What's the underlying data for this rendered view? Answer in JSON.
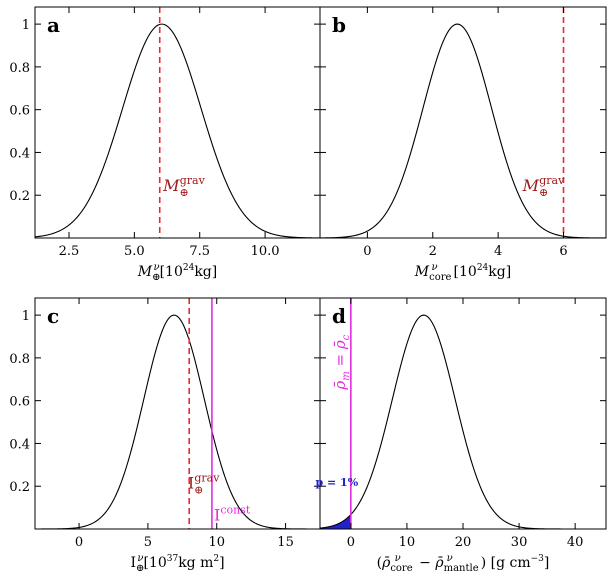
{
  "chart_data": [
    {
      "panel": "a",
      "type": "line",
      "xlabel": "M⊕ν [10²⁴kg]",
      "xlim": [
        1.2,
        12.1
      ],
      "ylim": [
        0,
        1.08
      ],
      "xticks": [
        2.5,
        5.0,
        7.5,
        10.0
      ],
      "xtick_labels": [
        "2.5",
        "5.0",
        "7.5",
        "10.0"
      ],
      "yticks": [
        0.2,
        0.4,
        0.6,
        0.8,
        1.0
      ],
      "ytick_labels": [
        "0.2",
        "0.4",
        "0.6",
        "0.8",
        "1"
      ],
      "curve": {
        "type": "gaussian",
        "center": 6.05,
        "sigma": 1.5
      },
      "vlines": [
        {
          "x": 5.97,
          "style": "dashed",
          "color": "#e8292e"
        }
      ],
      "annotations": [
        {
          "text": "M⊕grav",
          "x": 6.1,
          "y": 0.22,
          "color": "#a0191c"
        }
      ]
    },
    {
      "panel": "b",
      "type": "line",
      "xlabel": "Mᶜᵒʳᵉν [10²⁴kg]",
      "xlim": [
        -1.45,
        7.3
      ],
      "ylim": [
        0,
        1.08
      ],
      "xticks": [
        0,
        2,
        4,
        6
      ],
      "xtick_labels": [
        "0",
        "2",
        "4",
        "6"
      ],
      "curve": {
        "type": "gaussian",
        "center": 2.75,
        "sigma": 1.05
      },
      "vlines": [
        {
          "x": 6.0,
          "style": "dashed",
          "color": "#e8292e"
        }
      ],
      "annotations": [
        {
          "text": "M⊕grav",
          "x": 4.75,
          "y": 0.22,
          "color": "#a0191c"
        }
      ]
    },
    {
      "panel": "c",
      "type": "line",
      "xlabel": "I⊕ν [10³⁷kg m²]",
      "xlim": [
        -3.2,
        17.5
      ],
      "ylim": [
        0,
        1.08
      ],
      "xticks": [
        0,
        5,
        10,
        15
      ],
      "xtick_labels": [
        "0",
        "5",
        "10",
        "15"
      ],
      "yticks": [
        0.2,
        0.4,
        0.6,
        0.8,
        1.0
      ],
      "ytick_labels": [
        "0.2",
        "0.4",
        "0.6",
        "0.8",
        "1"
      ],
      "curve": {
        "type": "gaussian",
        "center": 6.9,
        "sigma": 2.2
      },
      "vlines": [
        {
          "x": 8.0,
          "style": "dashed",
          "color": "#e8292e"
        },
        {
          "x": 9.65,
          "style": "solid",
          "color": "#e22ce0"
        }
      ],
      "annotations": [
        {
          "text": "I⊕grav",
          "x": 7.9,
          "y": 0.19,
          "color": "#a0191c"
        },
        {
          "text": "Iconst",
          "x": 9.8,
          "y": 0.04,
          "color": "#e22ce0"
        }
      ]
    },
    {
      "panel": "d",
      "type": "line",
      "xlabel": "(ρ̄ᶜᵒʳᵉν − ρ̄ᵐᵃⁿᵗˡᵉν) [g cm⁻³]",
      "xlim": [
        -5.5,
        45.5
      ],
      "ylim": [
        0,
        1.08
      ],
      "xticks": [
        0,
        10,
        20,
        30,
        40
      ],
      "xtick_labels": [
        "0",
        "10",
        "20",
        "30",
        "40"
      ],
      "curve": {
        "type": "gaussian",
        "center": 13.0,
        "sigma": 5.6
      },
      "shaded_region": {
        "from": -5.5,
        "to": 0,
        "color": "#2222cc"
      },
      "vlines": [
        {
          "x": 0.0,
          "style": "solid",
          "color": "#e22ce0"
        }
      ],
      "annotations": [
        {
          "text": "ρ̄m = ρ̄c",
          "x": 0.0,
          "y": 0.78,
          "color": "#e22ce0",
          "rotated": true
        },
        {
          "text": "p = 1%",
          "x": -2.5,
          "y": 0.2,
          "color": "#2222cc"
        }
      ]
    }
  ]
}
